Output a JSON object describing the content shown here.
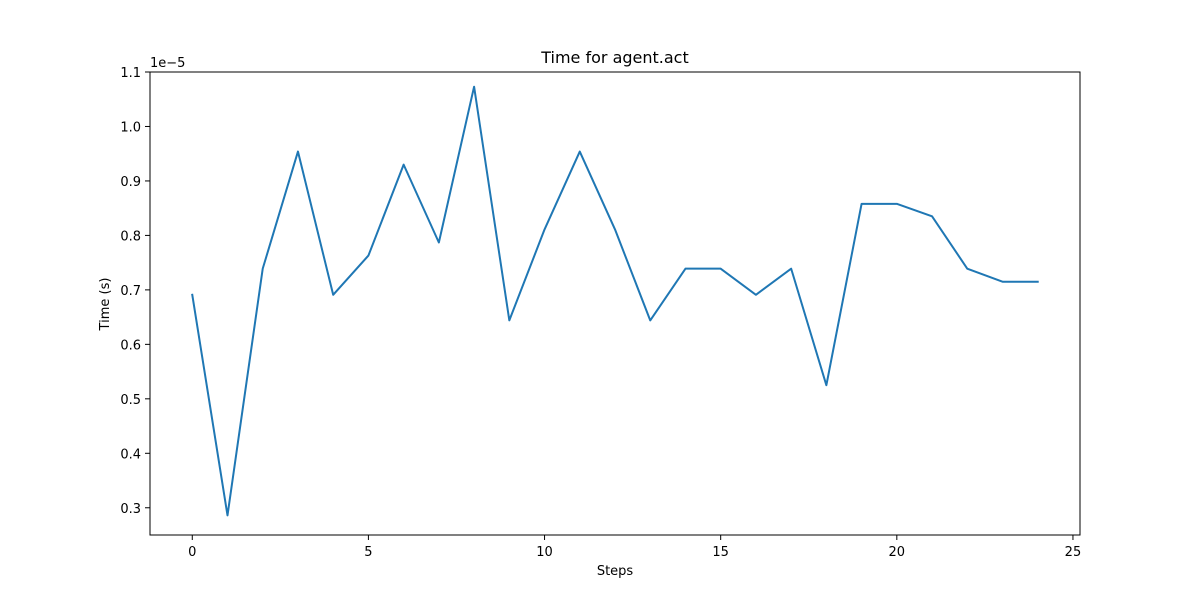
{
  "chart_data": {
    "type": "line",
    "title": "Time for agent.act",
    "xlabel": "Steps",
    "ylabel": "Time (s)",
    "y_offset_label": "1e−5",
    "xlim": [
      -1.2,
      25.2
    ],
    "ylim": [
      0.25,
      1.1
    ],
    "x_ticks": [
      0,
      5,
      10,
      15,
      20,
      25
    ],
    "y_ticks": [
      0.3,
      0.4,
      0.5,
      0.6,
      0.7,
      0.8,
      0.9,
      1.0,
      1.1
    ],
    "y_tick_labels": [
      "0.3",
      "0.4",
      "0.5",
      "0.6",
      "0.7",
      "0.8",
      "0.9",
      "1.0",
      "1.1"
    ],
    "grid": false,
    "line_color": "#1f77b4",
    "series": [
      {
        "x": [
          0,
          1,
          2,
          3,
          4,
          5,
          6,
          7,
          8,
          9,
          10,
          11,
          12,
          13,
          14,
          15,
          16,
          17,
          18,
          19,
          20,
          21,
          22,
          23,
          24
        ],
        "values": [
          0.691,
          0.286,
          0.739,
          0.954,
          0.691,
          0.763,
          0.93,
          0.787,
          1.073,
          0.644,
          0.811,
          0.954,
          0.811,
          0.644,
          0.739,
          0.739,
          0.691,
          0.739,
          0.525,
          0.858,
          0.858,
          0.835,
          0.739,
          0.715,
          0.715
        ]
      }
    ]
  }
}
